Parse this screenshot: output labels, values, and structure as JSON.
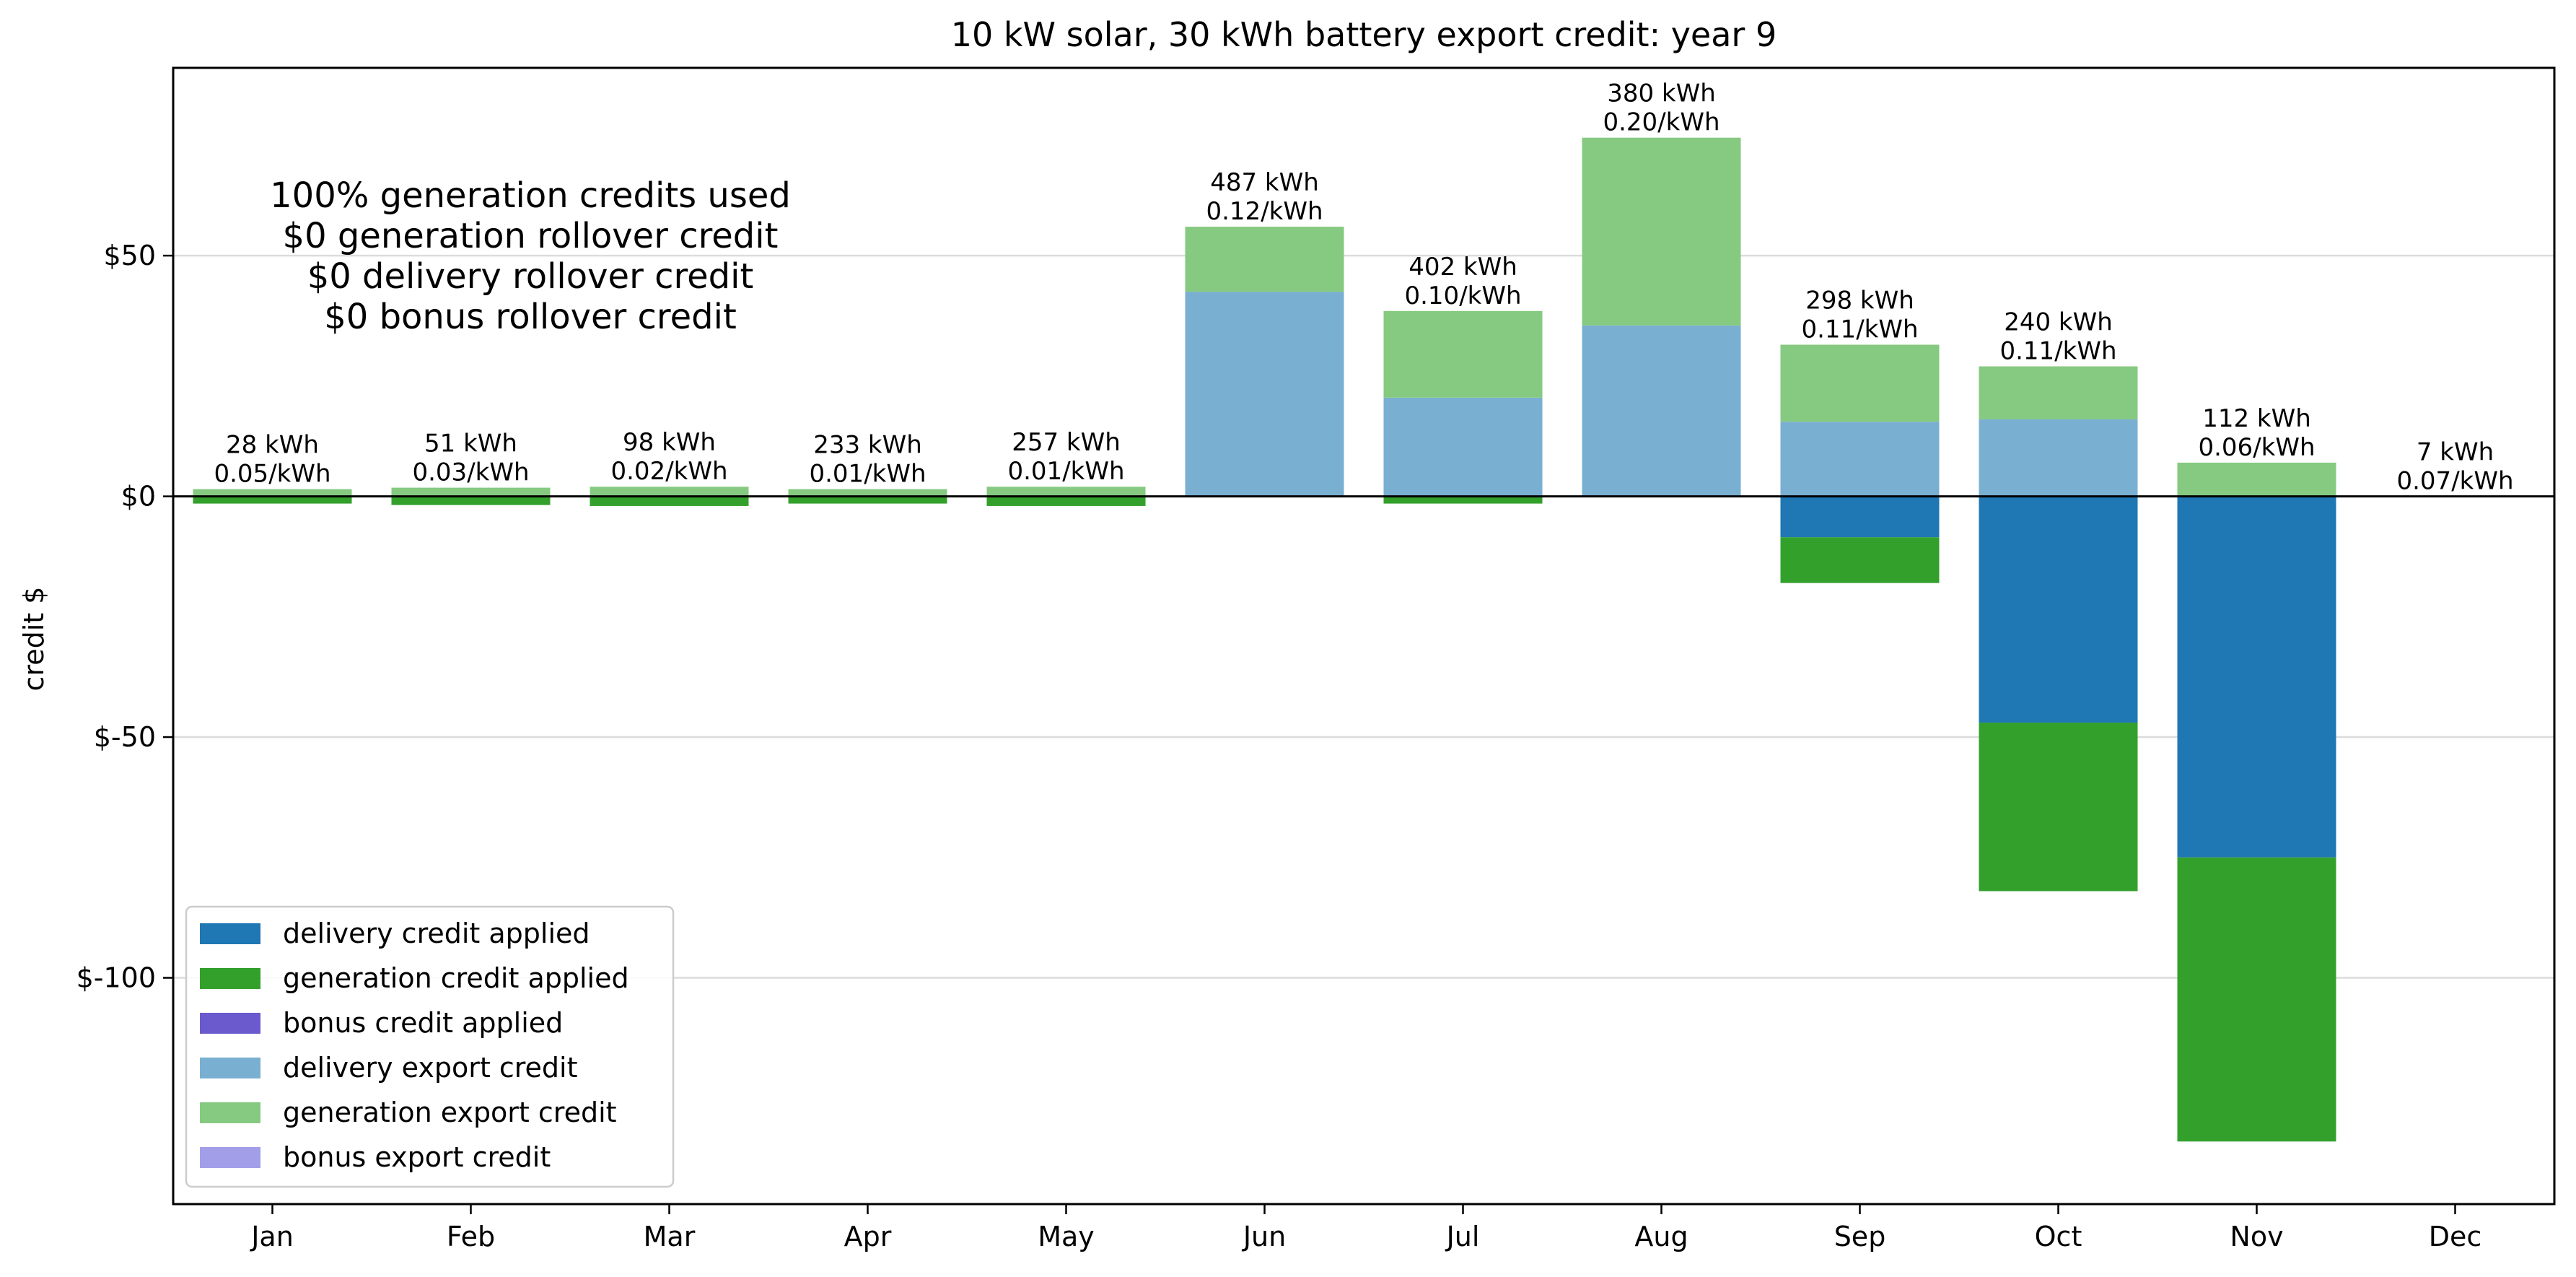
{
  "chart_data": {
    "type": "bar",
    "stacked": true,
    "title": "10 kW solar, 30 kWh battery export credit: year 9",
    "xlabel": "",
    "ylabel": "credit $",
    "ylim": [
      -147,
      89
    ],
    "yticks": [
      50,
      0,
      -50,
      -100
    ],
    "ytick_labels": [
      "$50",
      "$0",
      "$-50",
      "$-100"
    ],
    "grid": "horizontal",
    "categories": [
      "Jan",
      "Feb",
      "Mar",
      "Apr",
      "May",
      "Jun",
      "Jul",
      "Aug",
      "Sep",
      "Oct",
      "Nov",
      "Dec"
    ],
    "series": [
      {
        "name": "delivery credit applied",
        "color": "#1f77b4",
        "values": [
          0,
          0,
          0,
          0,
          0,
          0,
          0,
          0,
          -8.5,
          -47,
          -75,
          0
        ]
      },
      {
        "name": "generation credit applied",
        "color": "#33a02c",
        "values": [
          -1.5,
          -1.8,
          -2,
          -1.5,
          -2,
          0,
          -1.5,
          0,
          -9.5,
          -35,
          -59,
          0
        ]
      },
      {
        "name": "bonus credit applied",
        "color": "#6a5acd",
        "values": [
          0,
          0,
          0,
          0,
          0,
          0,
          0,
          0,
          0,
          0,
          0,
          0
        ]
      },
      {
        "name": "delivery export credit",
        "color": "#79afd1",
        "values": [
          0,
          0,
          0,
          0,
          0,
          42.5,
          20.5,
          35.5,
          15.5,
          16,
          0,
          0
        ]
      },
      {
        "name": "generation export credit",
        "color": "#86c981",
        "values": [
          1.5,
          1.8,
          2,
          1.5,
          2,
          13.5,
          18,
          39,
          16,
          11,
          7,
          0
        ]
      },
      {
        "name": "bonus export credit",
        "color": "#a39ee8",
        "values": [
          0,
          0,
          0,
          0,
          0,
          0,
          0,
          0,
          0,
          0,
          0,
          0
        ]
      }
    ],
    "bar_labels": [
      [
        "28 kWh",
        "0.05/kWh"
      ],
      [
        "51 kWh",
        "0.03/kWh"
      ],
      [
        "98 kWh",
        "0.02/kWh"
      ],
      [
        "233 kWh",
        "0.01/kWh"
      ],
      [
        "257 kWh",
        "0.01/kWh"
      ],
      [
        "487 kWh",
        "0.12/kWh"
      ],
      [
        "402 kWh",
        "0.10/kWh"
      ],
      [
        "380 kWh",
        "0.20/kWh"
      ],
      [
        "298 kWh",
        "0.11/kWh"
      ],
      [
        "240 kWh",
        "0.11/kWh"
      ],
      [
        "112 kWh",
        "0.06/kWh"
      ],
      [
        "7 kWh",
        "0.07/kWh"
      ]
    ],
    "annotation": [
      "100% generation credits used",
      "$0 generation rollover credit",
      "$0 delivery rollover credit",
      "$0 bonus rollover credit"
    ],
    "legend_position": "lower-left"
  }
}
